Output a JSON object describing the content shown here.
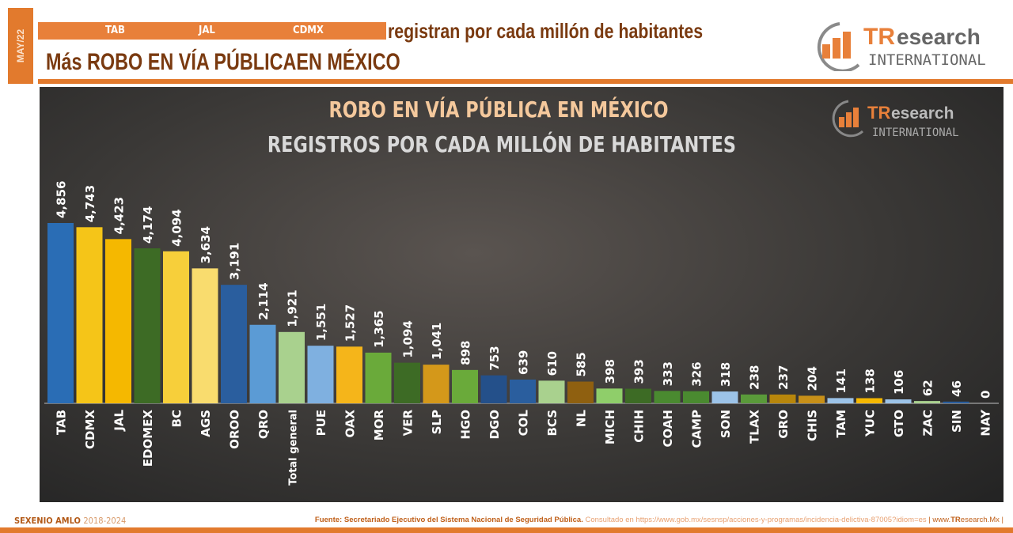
{
  "header": {
    "date_tag": "MAY/22",
    "band_items": [
      "TAB",
      "JAL",
      "CDMX"
    ],
    "title_line1": "registran por cada millón de habitantes",
    "title_line2": "Más ROBO EN VÍA PÚBLICAEN MÉXICO"
  },
  "logo": {
    "brand_tr": "TR",
    "brand_rest": "esearch",
    "brand_sub": "INTERNATIONAL"
  },
  "colors": {
    "accent": "#e27a2d",
    "title_brown": "#7a3a10",
    "chart_title": "#f4c89c",
    "chart_subtitle": "#d9d9d9"
  },
  "chart_data": {
    "type": "bar",
    "title": "ROBO EN VÍA PÚBLICA EN MÉXICO",
    "subtitle": "REGISTROS POR CADA MILLÓN DE HABITANTES",
    "categories": [
      "TAB",
      "CDMX",
      "JAL",
      "EDOMEX",
      "BC",
      "AGS",
      "OROO",
      "QRO",
      "Total general",
      "PUE",
      "OAX",
      "MOR",
      "VER",
      "SLP",
      "HGO",
      "DGO",
      "COL",
      "BCS",
      "NL",
      "MICH",
      "CHIH",
      "COAH",
      "CAMP",
      "SON",
      "TLAX",
      "GRO",
      "CHIS",
      "TAM",
      "YUC",
      "GTO",
      "ZAC",
      "SIN",
      "NAY"
    ],
    "values": [
      4856,
      4743,
      4423,
      4174,
      4094,
      3634,
      3191,
      2114,
      1921,
      1551,
      1527,
      1365,
      1094,
      1041,
      898,
      753,
      639,
      610,
      585,
      398,
      393,
      333,
      326,
      318,
      238,
      237,
      204,
      141,
      138,
      106,
      62,
      46,
      0
    ],
    "labels": [
      "4,856",
      "4,743",
      "4,423",
      "4,174",
      "4,094",
      "3,634",
      "3,191",
      "2,114",
      "1,921",
      "1,551",
      "1,527",
      "1,365",
      "1,094",
      "1,041",
      "898",
      "753",
      "639",
      "610",
      "585",
      "398",
      "393",
      "333",
      "326",
      "318",
      "238",
      "237",
      "204",
      "141",
      "138",
      "106",
      "62",
      "46",
      "0"
    ],
    "bar_colors": [
      "#2a6db5",
      "#f5c518",
      "#f5b800",
      "#3d6b25",
      "#f7cf3a",
      "#f9dc6e",
      "#2a5e9e",
      "#5b9bd5",
      "#a9d18e",
      "#7fb0e0",
      "#f5b51a",
      "#6aaa3a",
      "#3d6b25",
      "#d4981a",
      "#6aaa3a",
      "#24508a",
      "#2a5e9e",
      "#a9d18e",
      "#8f6010",
      "#8fce6a",
      "#3d6b25",
      "#4a8a30",
      "#4a8a30",
      "#9cc3e8",
      "#5a9a3a",
      "#b8860b",
      "#c89018",
      "#9cc3e8",
      "#f5b800",
      "#9cc3e8",
      "#a9d18e",
      "#2a5e9e",
      "#2a5e9e"
    ],
    "ylim": [
      0,
      4856
    ],
    "grid": false,
    "legend": "none"
  },
  "footer": {
    "left_bold": "SEXENIO AMLO",
    "left_years": "2018-2024",
    "source_label": "Fuente: Secretariado Ejecutivo del Sistema Nacional de Seguridad Pública.",
    "source_rest": "Consultado en https://www.gob.mx/sesnsp/acciones-y-programas/incidencia-delictiva-87005?idiom=es",
    "site_prefix": "| www.",
    "site_tr": "TR",
    "site_rest": "esearch.Mx |"
  }
}
